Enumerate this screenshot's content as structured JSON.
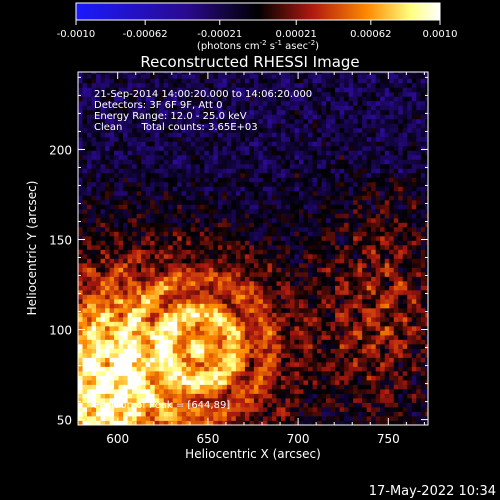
{
  "colorbar": {
    "tick_labels": [
      "-0.0010",
      "-0.00062",
      "-0.00021",
      "0.00021",
      "0.00062",
      "0.0010"
    ],
    "unit_label": "(photons cm",
    "unit_sup1": "-2",
    "unit_mid": " s",
    "unit_sup2": "-1",
    "unit_end": " asec",
    "unit_sup3": "-2",
    "unit_close": ")",
    "colors": [
      "#1a1aff",
      "#2a0a90",
      "#000000",
      "#b01a10",
      "#ff8a00",
      "#ffff80",
      "#ffffff"
    ]
  },
  "chart_data": {
    "type": "heatmap",
    "title": "Reconstructed RHESSI Image",
    "xlabel": "Heliocentric X (arcsec)",
    "ylabel": "Heliocentric Y (arcsec)",
    "xlim": [
      578,
      772
    ],
    "ylim": [
      47,
      243
    ],
    "xticks": [
      600,
      650,
      700,
      750
    ],
    "yticks": [
      50,
      100,
      150,
      200
    ],
    "info_lines": [
      "21-Sep-2014 14:00:20.000 to 14:06:20.000",
      "Detectors: 3F 6F 9F, Att 0",
      "Energy Range: 12.0 - 25.0 keV",
      "Clean      Total counts: 3.65E+03"
    ],
    "peak_label": "Position of Peak = [644,89]",
    "peak_position": [
      644,
      89
    ],
    "value_range": [
      -0.001,
      0.001
    ]
  },
  "footer": {
    "timestamp": "17-May-2022 10:34"
  }
}
